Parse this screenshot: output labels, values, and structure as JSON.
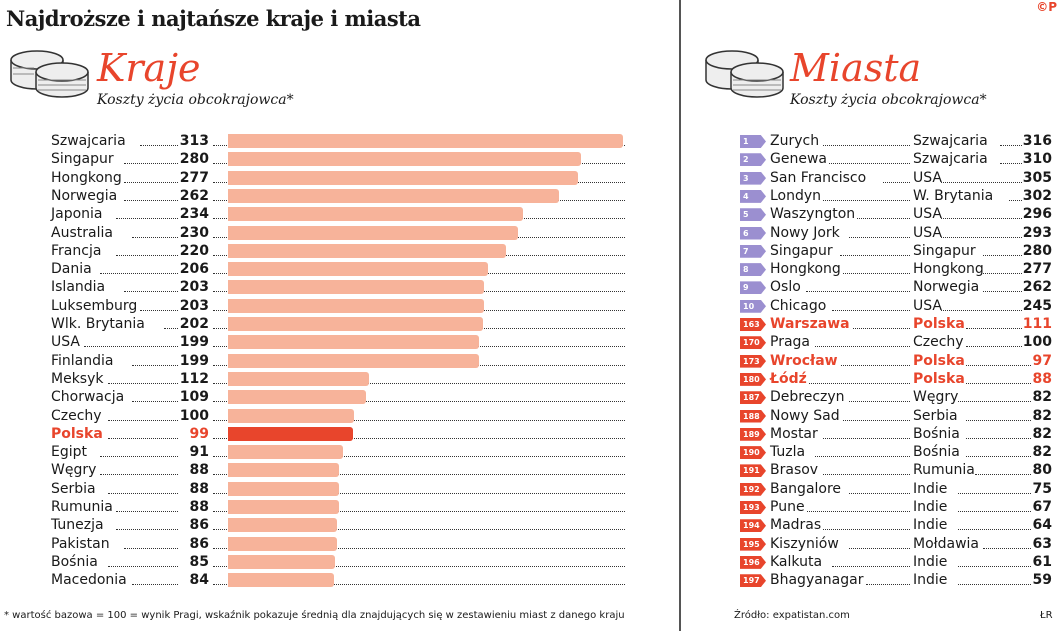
{
  "title": "Najdroższe i najtańsze kraje i miasta",
  "copyright": "©P",
  "colors": {
    "bar": "#f7b39a",
    "highlight": "#e8452c",
    "badge_top": "#9b8fd0",
    "badge_bottom": "#e8452c"
  },
  "chart_data": {
    "type": "bar",
    "title": "Kraje",
    "subtitle": "Koszty życia obcokrajowca*",
    "highlight": "Polska",
    "categories": [
      "Szwajcaria",
      "Singapur",
      "Hongkong",
      "Norwegia",
      "Japonia",
      "Australia",
      "Francja",
      "Dania",
      "Islandia",
      "Luksemburg",
      "Wlk. Brytania",
      "USA",
      "Finlandia",
      "Meksyk",
      "Chorwacja",
      "Czechy",
      "Polska",
      "Egipt",
      "Węgry",
      "Serbia",
      "Rumunia",
      "Tunezja",
      "Pakistan",
      "Bośnia",
      "Macedonia"
    ],
    "values": [
      313,
      280,
      277,
      262,
      234,
      230,
      220,
      206,
      203,
      203,
      202,
      199,
      199,
      112,
      109,
      100,
      99,
      91,
      88,
      88,
      88,
      86,
      86,
      85,
      84
    ]
  },
  "cities": {
    "title": "Miasta",
    "subtitle": "Koszty życia obcokrajowca*",
    "rows": [
      {
        "rank": "1",
        "city": "Zurych",
        "country": "Szwajcaria",
        "value": "316"
      },
      {
        "rank": "2",
        "city": "Genewa",
        "country": "Szwajcaria",
        "value": "310"
      },
      {
        "rank": "3",
        "city": "San Francisco",
        "country": "USA",
        "value": "305"
      },
      {
        "rank": "4",
        "city": "Londyn",
        "country": "W. Brytania",
        "value": "302"
      },
      {
        "rank": "5",
        "city": "Waszyngton",
        "country": "USA",
        "value": "296"
      },
      {
        "rank": "6",
        "city": "Nowy Jork",
        "country": "USA",
        "value": "293"
      },
      {
        "rank": "7",
        "city": "Singapur",
        "country": "Singapur",
        "value": "280"
      },
      {
        "rank": "8",
        "city": "Hongkong",
        "country": "Hongkong",
        "value": "277"
      },
      {
        "rank": "9",
        "city": "Oslo",
        "country": "Norwegia",
        "value": "262"
      },
      {
        "rank": "10",
        "city": "Chicago",
        "country": "USA",
        "value": "245"
      },
      {
        "rank": "163",
        "city": "Warszawa",
        "country": "Polska",
        "value": "111",
        "hl": true
      },
      {
        "rank": "170",
        "city": "Praga",
        "country": "Czechy",
        "value": "100"
      },
      {
        "rank": "173",
        "city": "Wrocław",
        "country": "Polska",
        "value": "97",
        "hl": true
      },
      {
        "rank": "180",
        "city": "Łódź",
        "country": "Polska",
        "value": "88",
        "hl": true
      },
      {
        "rank": "187",
        "city": "Debreczyn",
        "country": "Węgry",
        "value": "82"
      },
      {
        "rank": "188",
        "city": "Nowy Sad",
        "country": "Serbia",
        "value": "82"
      },
      {
        "rank": "189",
        "city": "Mostar",
        "country": "Bośnia",
        "value": "82"
      },
      {
        "rank": "190",
        "city": "Tuzla",
        "country": "Bośnia",
        "value": "82"
      },
      {
        "rank": "191",
        "city": "Brasov",
        "country": "Rumunia",
        "value": "80"
      },
      {
        "rank": "192",
        "city": "Bangalore",
        "country": "Indie",
        "value": "75"
      },
      {
        "rank": "193",
        "city": "Pune",
        "country": "Indie",
        "value": "67"
      },
      {
        "rank": "194",
        "city": "Madras",
        "country": "Indie",
        "value": "64"
      },
      {
        "rank": "195",
        "city": "Kiszyniów",
        "country": "Mołdawia",
        "value": "63"
      },
      {
        "rank": "196",
        "city": "Kalkuta",
        "country": "Indie",
        "value": "61"
      },
      {
        "rank": "197",
        "city": "Bhagyanagar",
        "country": "Indie",
        "value": "59"
      }
    ]
  },
  "footnote": "* wartość bazowa = 100 = wynik Pragi, wskaźnik pokazuje średnią dla znajdujących się w zestawieniu miast z danego kraju",
  "source": "Źródło: expatistan.com",
  "author": "ŁR"
}
